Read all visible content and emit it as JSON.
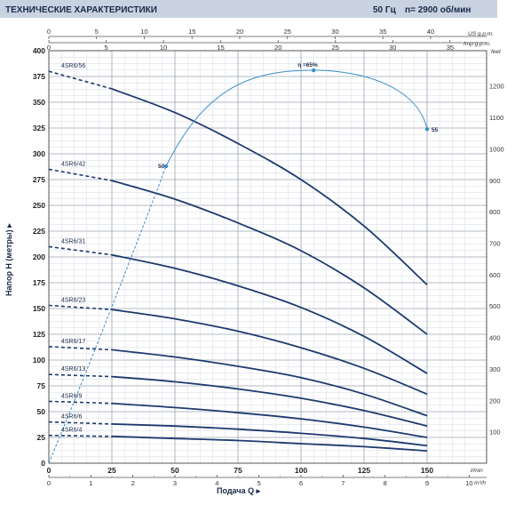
{
  "header": {
    "title": "ТЕХНИЧЕСКИЕ ХАРАКТЕРИСТИКИ",
    "freq": "50 Гц",
    "speed": "n= 2900  об/мин"
  },
  "axes": {
    "y_title": "Напор H (метры) ▸",
    "x_title": "Подача Q ▸",
    "units": {
      "us_gpm": "US g.p.m.",
      "imp_gpm": "Imp g.p.m.",
      "feet": "feet",
      "lmin": "l/min",
      "m3h": "m³/h"
    }
  },
  "colors": {
    "header_bg": "#c8d2e0",
    "curve": "#1f3a6e",
    "efficiency": "#3b8fc6",
    "grid_major": "#9aa4b0",
    "grid_minor": "#d6dbe2"
  },
  "chart_data": {
    "type": "line",
    "xlabel": "Подача Q",
    "ylabel": "Напор H (метры)",
    "xlim": [
      0,
      150
    ],
    "ylim": [
      0,
      400
    ],
    "x_unit": "l/min",
    "y_unit": "m",
    "grid": true,
    "x_ticks": [
      0,
      25,
      50,
      75,
      100,
      125,
      150
    ],
    "y_ticks": [
      0,
      25,
      50,
      75,
      100,
      125,
      150,
      175,
      200,
      225,
      250,
      275,
      300,
      325,
      350,
      375,
      400
    ],
    "secondary_axes": {
      "m3h_ticks": [
        0,
        1,
        2,
        3,
        4,
        5,
        6,
        7,
        8,
        9,
        10
      ],
      "us_gpm_ticks": [
        0,
        5,
        10,
        15,
        20,
        25,
        30,
        35,
        40
      ],
      "imp_gpm_ticks": [
        0,
        5,
        10,
        15,
        20,
        25,
        30,
        35
      ],
      "feet_ticks": [
        100,
        200,
        300,
        400,
        500,
        600,
        700,
        800,
        900,
        1000,
        1100,
        1200
      ]
    },
    "series": [
      {
        "name": "4SR6/56",
        "points": [
          [
            0,
            380
          ],
          [
            25,
            363
          ],
          [
            50,
            340
          ],
          [
            75,
            310
          ],
          [
            100,
            275
          ],
          [
            125,
            230
          ],
          [
            150,
            173
          ]
        ]
      },
      {
        "name": "4SR6/42",
        "points": [
          [
            0,
            285
          ],
          [
            25,
            274
          ],
          [
            50,
            256
          ],
          [
            75,
            233
          ],
          [
            100,
            206
          ],
          [
            125,
            170
          ],
          [
            150,
            125
          ]
        ]
      },
      {
        "name": "4SR6/31",
        "points": [
          [
            0,
            210
          ],
          [
            25,
            202
          ],
          [
            50,
            189
          ],
          [
            75,
            172
          ],
          [
            100,
            151
          ],
          [
            125,
            123
          ],
          [
            150,
            87
          ]
        ]
      },
      {
        "name": "4SR6/23",
        "points": [
          [
            0,
            153
          ],
          [
            25,
            149
          ],
          [
            50,
            140
          ],
          [
            75,
            128
          ],
          [
            100,
            112
          ],
          [
            125,
            92
          ],
          [
            150,
            67
          ]
        ]
      },
      {
        "name": "4SR6/17",
        "points": [
          [
            0,
            113
          ],
          [
            25,
            110
          ],
          [
            50,
            103
          ],
          [
            75,
            94
          ],
          [
            100,
            83
          ],
          [
            125,
            67
          ],
          [
            150,
            46
          ]
        ]
      },
      {
        "name": "4SR6/13",
        "points": [
          [
            0,
            86
          ],
          [
            25,
            84
          ],
          [
            50,
            79
          ],
          [
            75,
            72
          ],
          [
            100,
            63
          ],
          [
            125,
            51
          ],
          [
            150,
            36
          ]
        ]
      },
      {
        "name": "4SR6/9",
        "points": [
          [
            0,
            60
          ],
          [
            25,
            58
          ],
          [
            50,
            54
          ],
          [
            75,
            49
          ],
          [
            100,
            43
          ],
          [
            125,
            35
          ],
          [
            150,
            25
          ]
        ]
      },
      {
        "name": "4SR6/6",
        "points": [
          [
            0,
            40
          ],
          [
            25,
            38
          ],
          [
            50,
            36
          ],
          [
            75,
            33
          ],
          [
            100,
            29
          ],
          [
            125,
            24
          ],
          [
            150,
            17
          ]
        ]
      },
      {
        "name": "4SR6/4",
        "points": [
          [
            0,
            27
          ],
          [
            25,
            26
          ],
          [
            50,
            24
          ],
          [
            75,
            22
          ],
          [
            100,
            19
          ],
          [
            125,
            16
          ],
          [
            150,
            12
          ]
        ]
      }
    ],
    "efficiency": {
      "points": [
        [
          46.5,
          288
        ],
        [
          105,
          381
        ],
        [
          150,
          324
        ]
      ],
      "labels": [
        "50",
        "η =65%",
        "55"
      ]
    }
  }
}
